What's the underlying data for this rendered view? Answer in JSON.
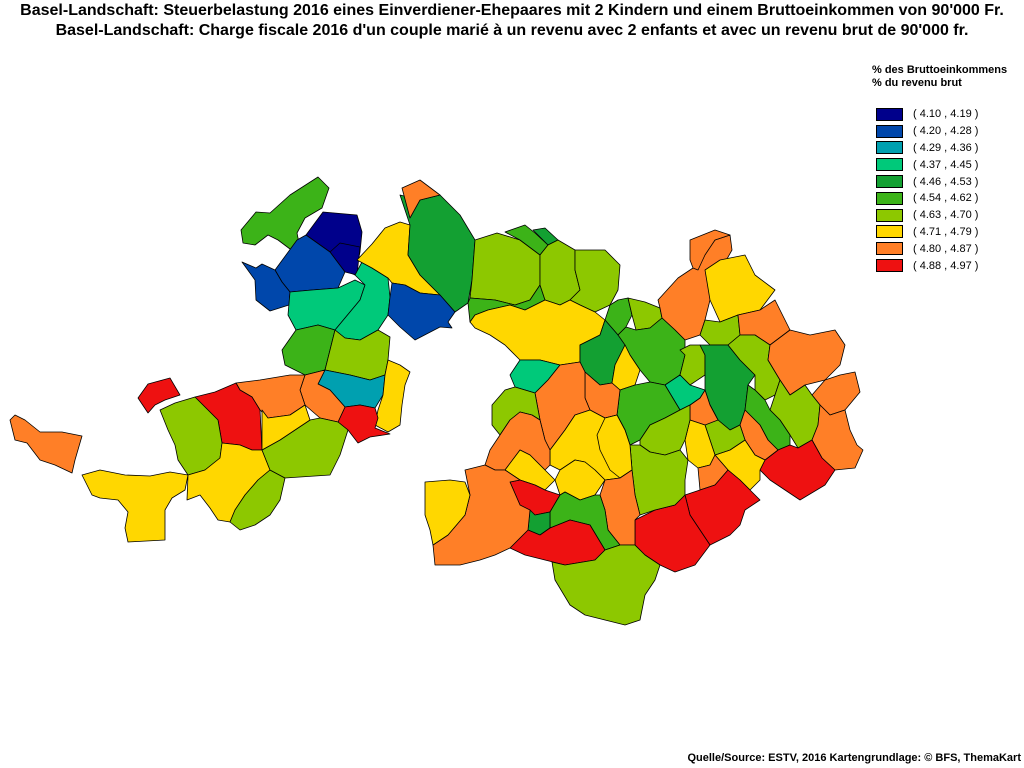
{
  "title_de": "Basel-Landschaft: Steuerbelastung 2016 eines Einverdiener-Ehepaares mit 2 Kindern und einem Bruttoeinkommen von 90'000 Fr.",
  "title_fr": "Basel-Landschaft: Charge fiscale 2016 d'un couple marié à un revenu avec 2 enfants et avec un revenu brut de 90'000 fr.",
  "legend": {
    "title_de": "% des Bruttoeinkommens",
    "title_fr": "% du revenu brut",
    "classes": [
      {
        "label": "( 4.10 , 4.19 )",
        "color": "#00008B"
      },
      {
        "label": "( 4.20 , 4.28 )",
        "color": "#0047AB"
      },
      {
        "label": "( 4.29 , 4.36 )",
        "color": "#00A0B0"
      },
      {
        "label": "( 4.37 , 4.45 )",
        "color": "#00C97A"
      },
      {
        "label": "( 4.46 , 4.53 )",
        "color": "#13A032"
      },
      {
        "label": "( 4.54 , 4.62 )",
        "color": "#3CB318"
      },
      {
        "label": "( 4.63 , 4.70 )",
        "color": "#8DC800"
      },
      {
        "label": "( 4.71 , 4.79 )",
        "color": "#FFD700"
      },
      {
        "label": "( 4.80 , 4.87 )",
        "color": "#FF7F27"
      },
      {
        "label": "( 4.88 , 4.97 )",
        "color": "#EE1111"
      }
    ]
  },
  "source": "Quelle/Source: ESTV, 2016 Kartengrundlage: © BFS, ThemaKart"
}
